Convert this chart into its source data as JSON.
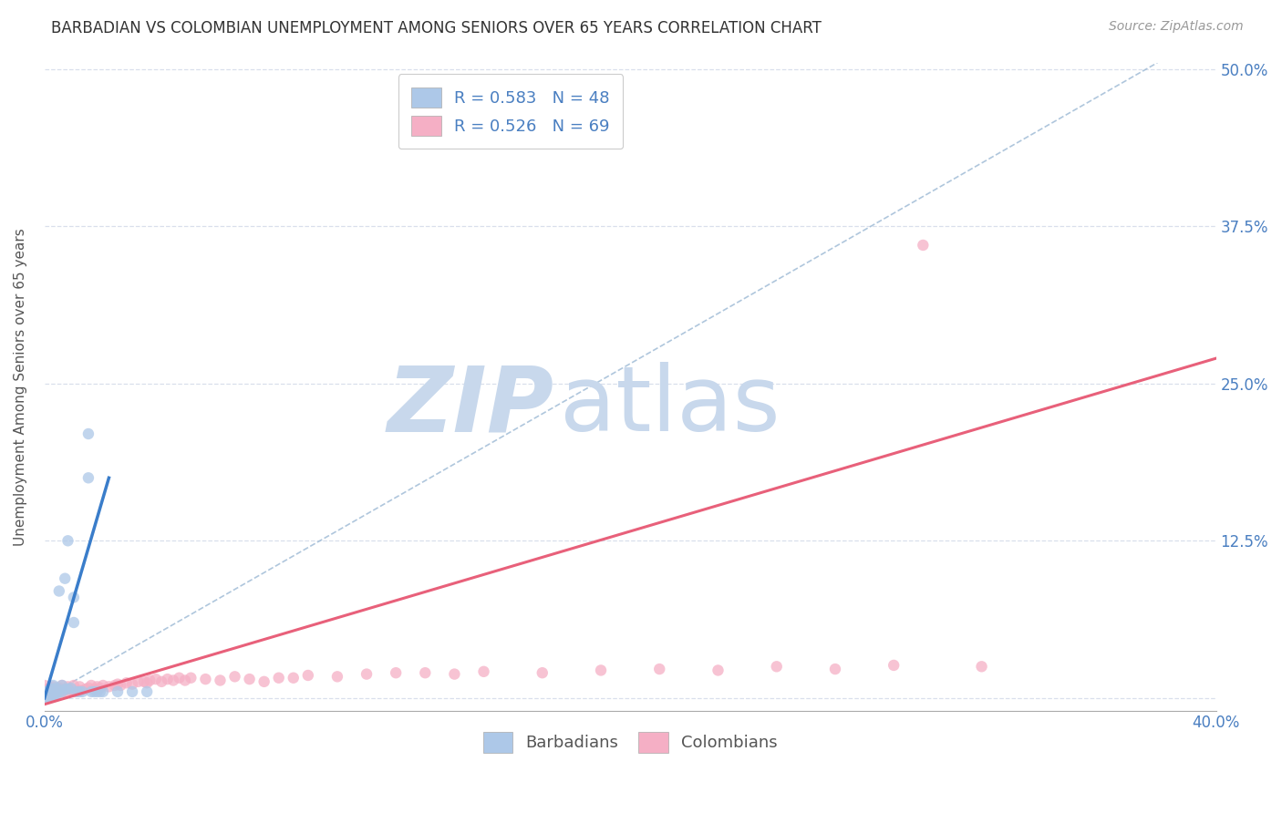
{
  "title": "BARBADIAN VS COLOMBIAN UNEMPLOYMENT AMONG SENIORS OVER 65 YEARS CORRELATION CHART",
  "source": "Source: ZipAtlas.com",
  "ylabel": "Unemployment Among Seniors over 65 years",
  "xlim": [
    0.0,
    0.4
  ],
  "ylim": [
    -0.01,
    0.505
  ],
  "yticks": [
    0.0,
    0.125,
    0.25,
    0.375,
    0.5
  ],
  "ytick_labels": [
    "",
    "12.5%",
    "25.0%",
    "37.5%",
    "50.0%"
  ],
  "xtick_labels": [
    "0.0%",
    "",
    "",
    "",
    "40.0%"
  ],
  "barbadian_R": 0.583,
  "barbadian_N": 48,
  "colombian_R": 0.526,
  "colombian_N": 69,
  "barbadian_color": "#adc8e8",
  "colombian_color": "#f5afc5",
  "barbadian_line_color": "#3a7dca",
  "colombian_line_color": "#e8607a",
  "ref_line_color": "#9bb8d4",
  "watermark_zip_color": "#c8d8ec",
  "watermark_atlas_color": "#c8d8ec",
  "background_color": "#ffffff",
  "title_fontsize": 12,
  "source_fontsize": 10,
  "legend_fontsize": 13,
  "axis_label_fontsize": 11,
  "tick_fontsize": 12,
  "barbadian_x": [
    0.0,
    0.0,
    0.0,
    0.0,
    0.0,
    0.0,
    0.0,
    0.001,
    0.001,
    0.001,
    0.001,
    0.002,
    0.002,
    0.002,
    0.002,
    0.002,
    0.003,
    0.003,
    0.003,
    0.003,
    0.003,
    0.004,
    0.004,
    0.004,
    0.005,
    0.005,
    0.006,
    0.006,
    0.007,
    0.007,
    0.008,
    0.008,
    0.009,
    0.01,
    0.01,
    0.011,
    0.012,
    0.013,
    0.015,
    0.015,
    0.016,
    0.017,
    0.018,
    0.019,
    0.02,
    0.025,
    0.03,
    0.035
  ],
  "barbadian_y": [
    0.0,
    0.001,
    0.001,
    0.002,
    0.003,
    0.004,
    0.005,
    0.001,
    0.002,
    0.003,
    0.005,
    0.001,
    0.002,
    0.004,
    0.005,
    0.007,
    0.001,
    0.003,
    0.005,
    0.007,
    0.01,
    0.003,
    0.005,
    0.008,
    0.005,
    0.085,
    0.005,
    0.01,
    0.007,
    0.095,
    0.007,
    0.125,
    0.008,
    0.06,
    0.08,
    0.005,
    0.005,
    0.005,
    0.175,
    0.21,
    0.005,
    0.005,
    0.005,
    0.005,
    0.005,
    0.005,
    0.005,
    0.005
  ],
  "colombian_x": [
    0.0,
    0.0,
    0.0,
    0.001,
    0.001,
    0.002,
    0.002,
    0.003,
    0.003,
    0.004,
    0.005,
    0.005,
    0.006,
    0.006,
    0.007,
    0.008,
    0.008,
    0.009,
    0.01,
    0.01,
    0.012,
    0.012,
    0.014,
    0.015,
    0.016,
    0.017,
    0.018,
    0.019,
    0.02,
    0.022,
    0.024,
    0.025,
    0.026,
    0.028,
    0.03,
    0.032,
    0.034,
    0.035,
    0.036,
    0.038,
    0.04,
    0.042,
    0.044,
    0.046,
    0.048,
    0.05,
    0.055,
    0.06,
    0.065,
    0.07,
    0.075,
    0.08,
    0.085,
    0.09,
    0.1,
    0.11,
    0.12,
    0.13,
    0.14,
    0.15,
    0.17,
    0.19,
    0.21,
    0.23,
    0.25,
    0.27,
    0.29,
    0.3,
    0.32
  ],
  "colombian_y": [
    0.003,
    0.006,
    0.01,
    0.004,
    0.007,
    0.005,
    0.008,
    0.003,
    0.009,
    0.006,
    0.004,
    0.008,
    0.005,
    0.01,
    0.006,
    0.004,
    0.009,
    0.007,
    0.005,
    0.01,
    0.006,
    0.009,
    0.007,
    0.008,
    0.01,
    0.007,
    0.009,
    0.008,
    0.01,
    0.009,
    0.01,
    0.011,
    0.01,
    0.012,
    0.011,
    0.013,
    0.013,
    0.012,
    0.014,
    0.015,
    0.013,
    0.015,
    0.014,
    0.016,
    0.014,
    0.016,
    0.015,
    0.014,
    0.017,
    0.015,
    0.013,
    0.016,
    0.016,
    0.018,
    0.017,
    0.019,
    0.02,
    0.02,
    0.019,
    0.021,
    0.02,
    0.022,
    0.023,
    0.022,
    0.025,
    0.023,
    0.026,
    0.36,
    0.025
  ],
  "barbadian_trend_x": [
    0.0,
    0.022
  ],
  "barbadian_trend_y": [
    0.0,
    0.175
  ],
  "colombian_trend_x": [
    0.0,
    0.4
  ],
  "colombian_trend_y": [
    -0.005,
    0.27
  ],
  "ref_line_x": [
    0.0,
    0.38
  ],
  "ref_line_y": [
    0.0,
    0.505
  ]
}
